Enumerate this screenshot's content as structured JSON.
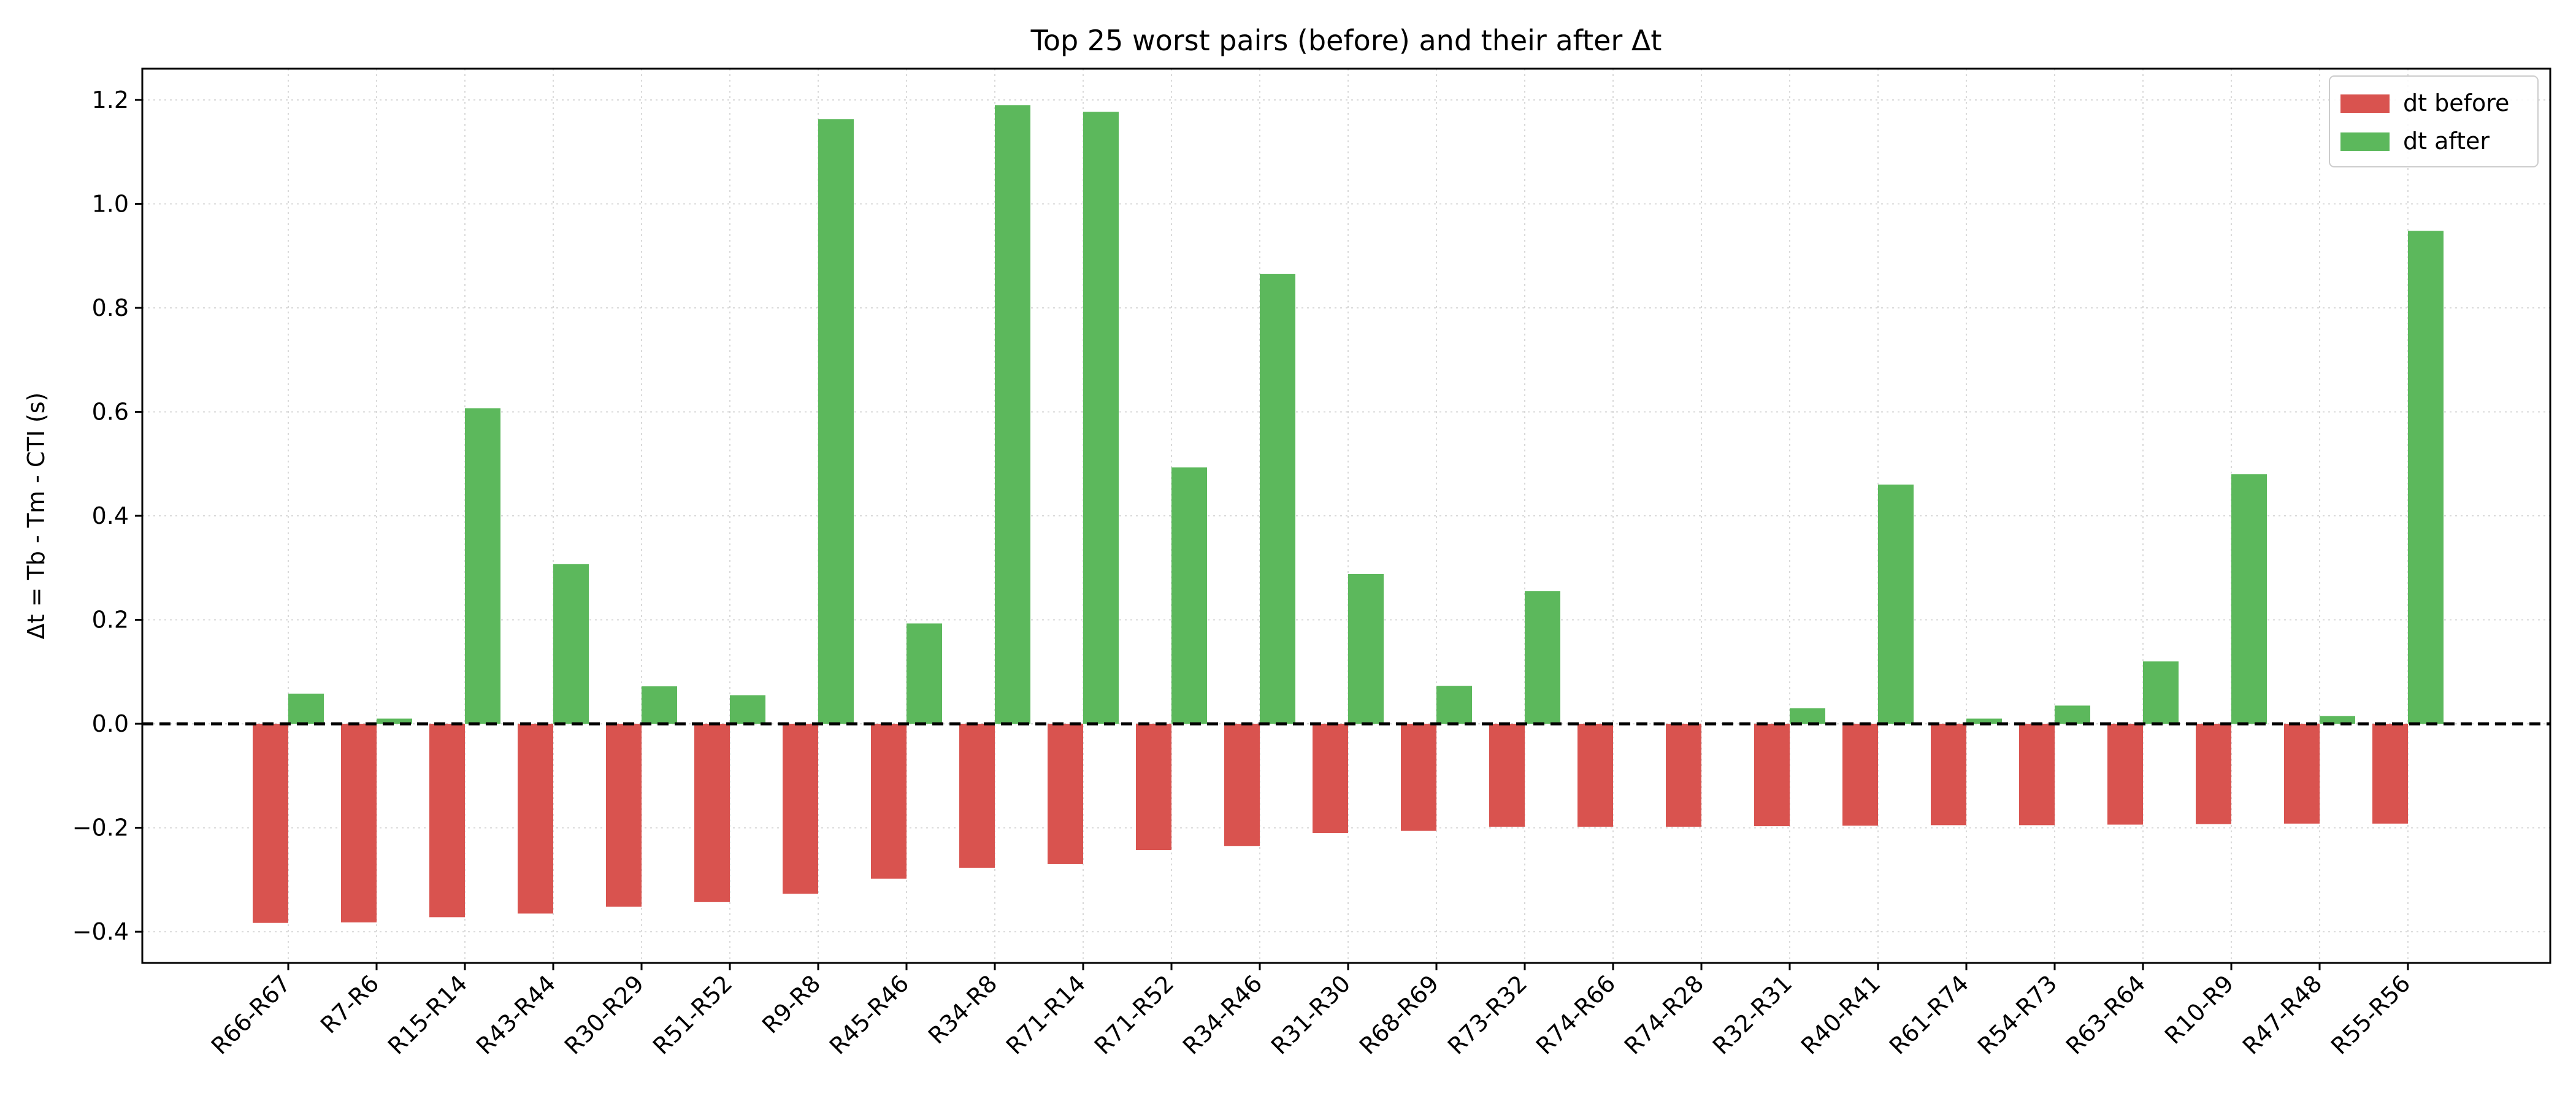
{
  "chart_data": {
    "type": "bar",
    "title": "Top 25 worst pairs (before) and their after Δt",
    "xlabel": "",
    "ylabel": "Δt = Tb - Tm - CTI (s)",
    "ylim": [
      -0.46,
      1.26
    ],
    "yticks": [
      -0.4,
      -0.2,
      0.0,
      0.2,
      0.4,
      0.6,
      0.8,
      1.0,
      1.2
    ],
    "ytick_labels": [
      "−0.4",
      "−0.2",
      "0.0",
      "0.2",
      "0.4",
      "0.6",
      "0.8",
      "1.0",
      "1.2"
    ],
    "grid": true,
    "legend_position": "top-right",
    "reference_line": 0.0,
    "categories": [
      "R66-R67",
      "R7-R6",
      "R15-R14",
      "R43-R44",
      "R30-R29",
      "R51-R52",
      "R9-R8",
      "R45-R46",
      "R34-R8",
      "R71-R14",
      "R71-R52",
      "R34-R46",
      "R31-R30",
      "R68-R69",
      "R73-R32",
      "R74-R66",
      "R74-R28",
      "R32-R31",
      "R40-R41",
      "R61-R74",
      "R54-R73",
      "R63-R64",
      "R10-R9",
      "R47-R48",
      "R55-R56"
    ],
    "series": [
      {
        "name": "dt before",
        "color": "#d9534f",
        "values": [
          -0.383,
          -0.382,
          -0.372,
          -0.365,
          -0.352,
          -0.343,
          -0.327,
          -0.298,
          -0.277,
          -0.27,
          -0.243,
          -0.235,
          -0.21,
          -0.206,
          -0.198,
          -0.198,
          -0.198,
          -0.197,
          -0.196,
          -0.195,
          -0.195,
          -0.194,
          -0.193,
          -0.192,
          -0.192
        ]
      },
      {
        "name": "dt after",
        "color": "#5cb85c",
        "values": [
          0.058,
          0.01,
          0.607,
          0.307,
          0.072,
          0.055,
          1.163,
          0.193,
          1.19,
          1.177,
          0.493,
          0.865,
          0.288,
          0.073,
          0.255,
          0.0,
          0.0,
          0.03,
          0.46,
          0.01,
          0.035,
          0.12,
          0.48,
          0.015,
          0.948
        ]
      }
    ]
  }
}
